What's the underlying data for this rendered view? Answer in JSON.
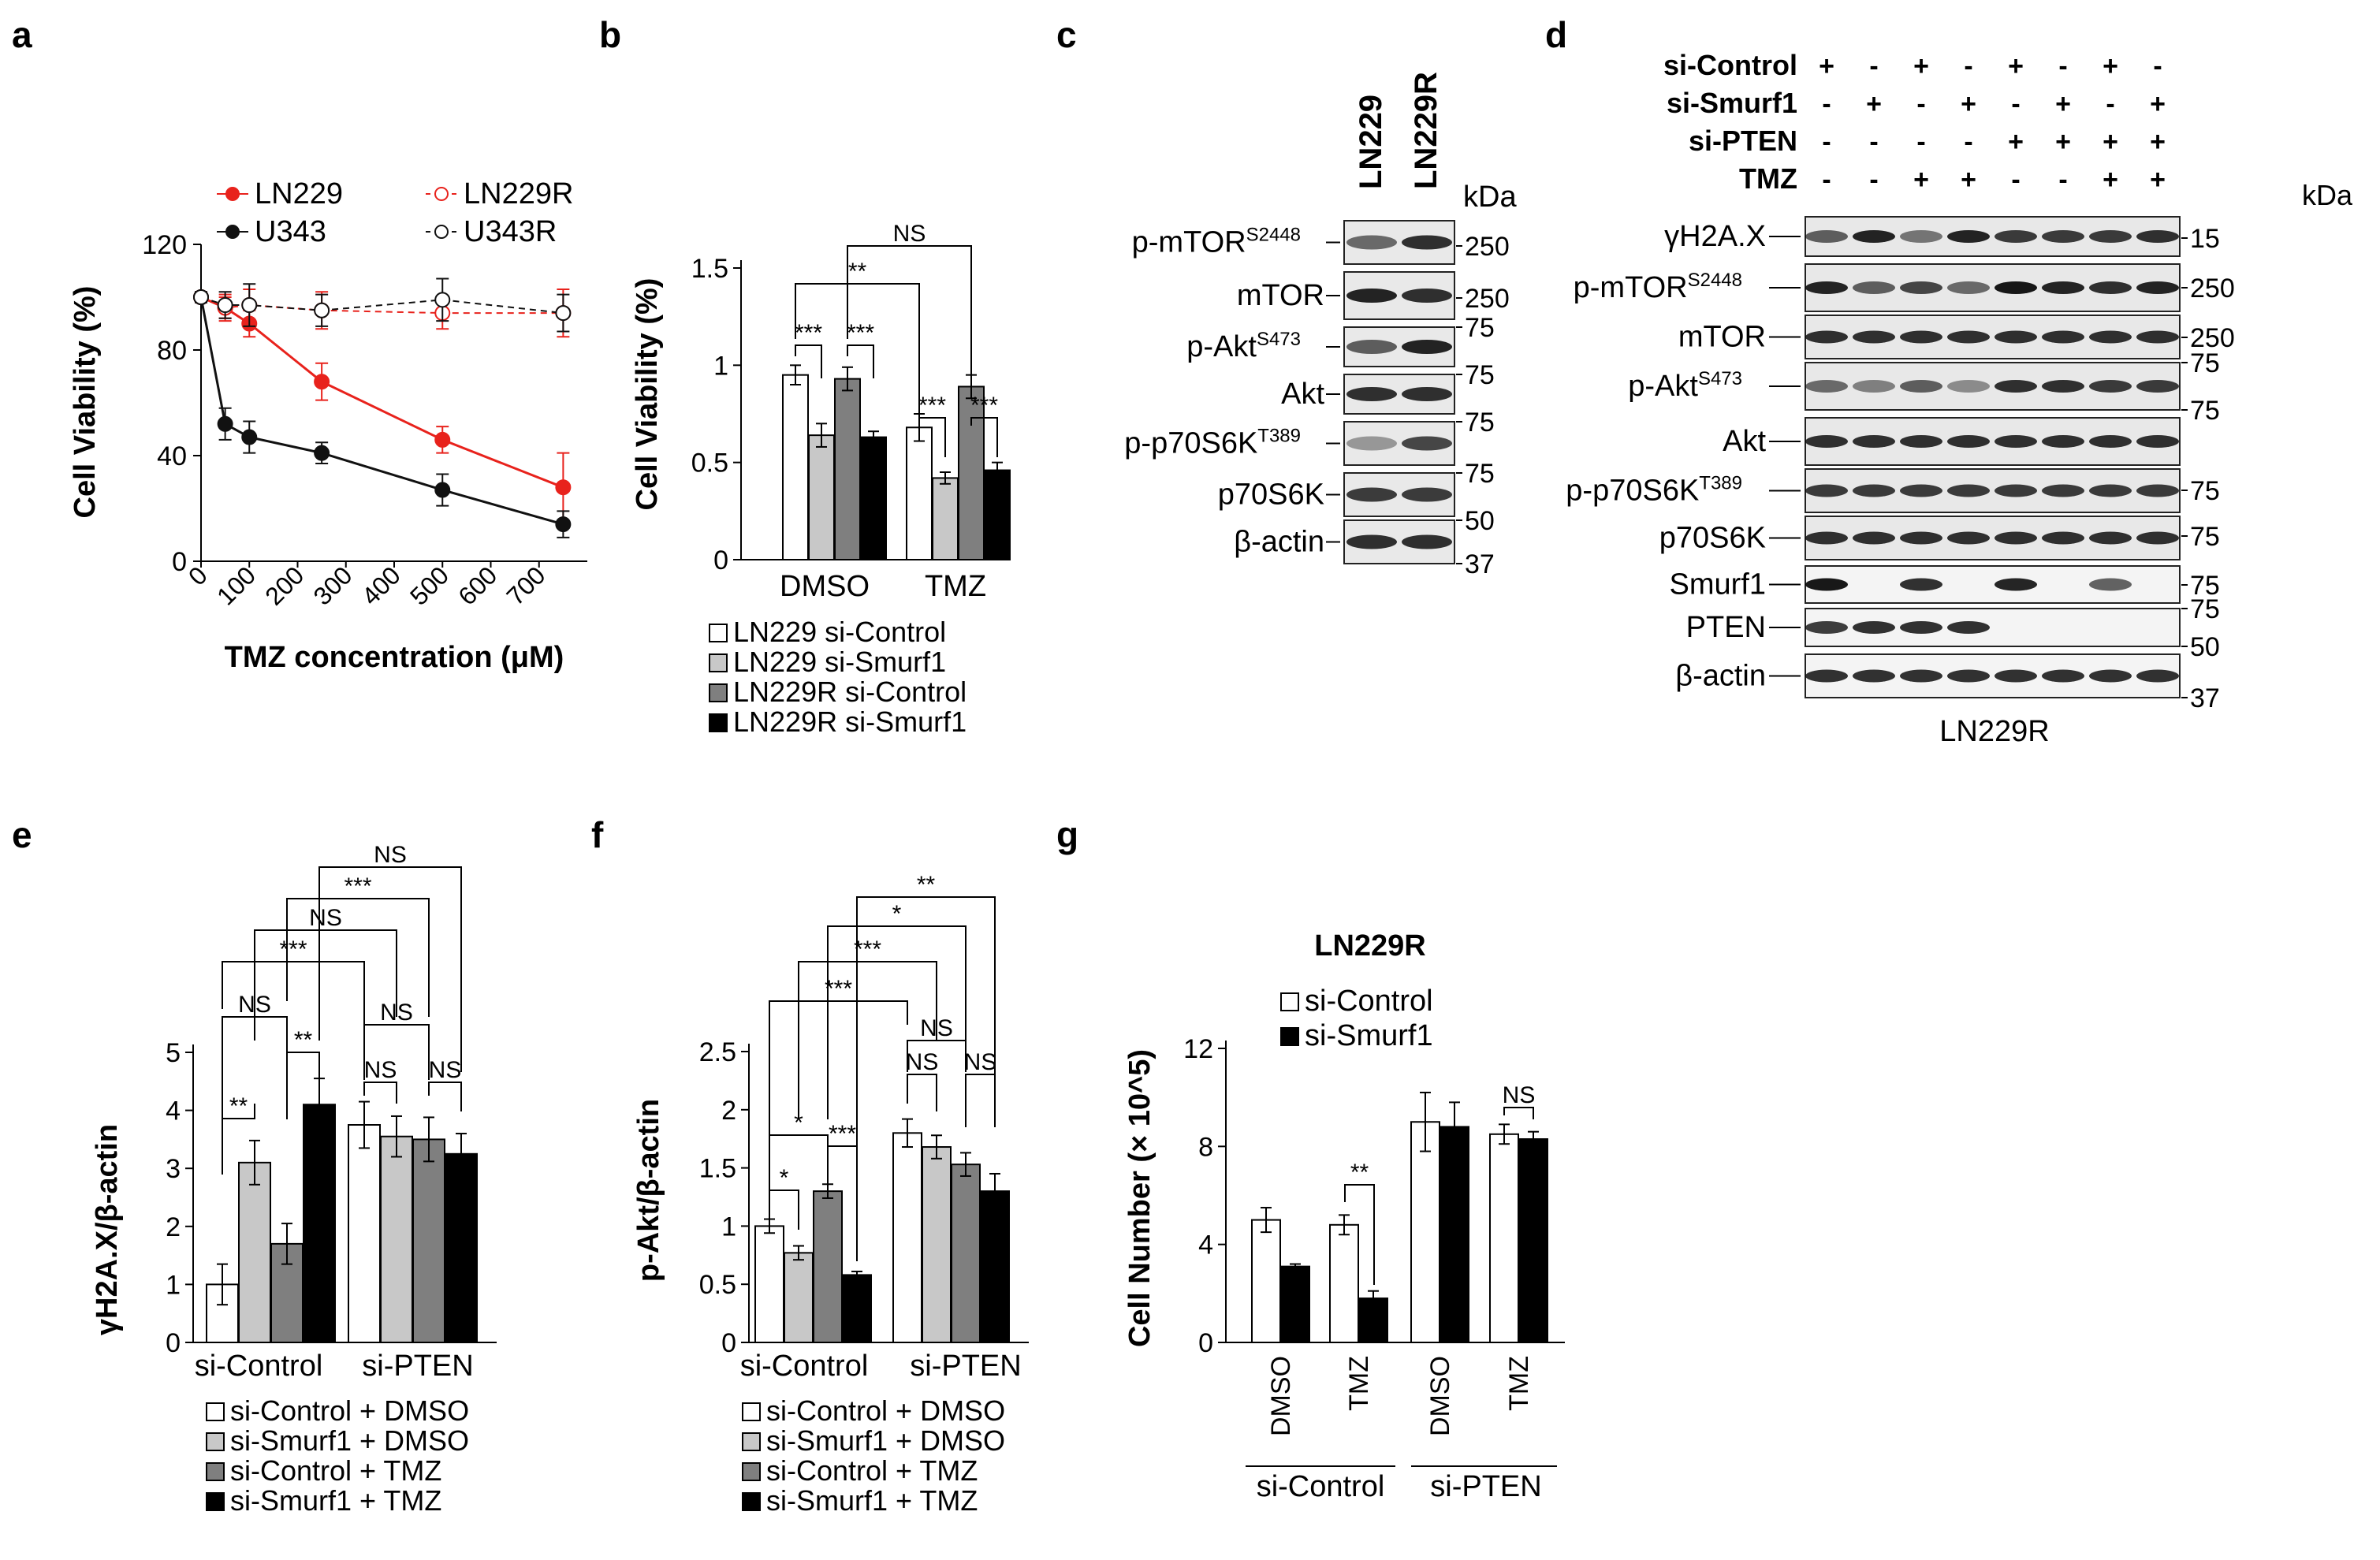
{
  "panel_letters": {
    "a": "a",
    "b": "b",
    "c": "c",
    "d": "d",
    "e": "e",
    "f": "f",
    "g": "g"
  },
  "units": {
    "kda": "kDa"
  },
  "panel_a": {
    "legend": [
      "LN229",
      "LN229R",
      "U343",
      "U343R"
    ],
    "xlabel": "TMZ concentration (μM)",
    "ylabel": "Cell Viability  (%)",
    "x_ticks": [
      "0",
      "100",
      "200",
      "300",
      "400",
      "500",
      "600",
      "700"
    ],
    "y_ticks": [
      "0",
      "40",
      "80",
      "120"
    ]
  },
  "panel_b": {
    "ylabel": "Cell Viability  (%)",
    "y_ticks": [
      "0",
      "0.5",
      "1",
      "1.5"
    ],
    "groups": [
      "DMSO",
      "TMZ"
    ],
    "legend": [
      "LN229 si-Control",
      "LN229 si-Smurf1",
      "LN229R si-Control",
      "LN229R si-Smurf1"
    ],
    "sig": [
      "***",
      "***",
      "***",
      "***",
      "**",
      "NS"
    ]
  },
  "panel_c": {
    "lanes": [
      "LN229",
      "LN229R"
    ],
    "bands": [
      "p-mTOR",
      "mTOR",
      "p-Akt",
      "Akt",
      "p-p70S6K",
      "p70S6K",
      "β-actin"
    ],
    "superscripts": [
      "S2448",
      "S473",
      "T389"
    ],
    "markers": [
      "250",
      "250",
      "75",
      "75",
      "75",
      "75",
      "50",
      "37"
    ]
  },
  "panel_d": {
    "conditions": [
      {
        "name": "si-Control",
        "signs": [
          "+",
          "-",
          "+",
          "-",
          "+",
          "-",
          "+",
          "-"
        ]
      },
      {
        "name": "si-Smurf1",
        "signs": [
          "-",
          "+",
          "-",
          "+",
          "-",
          "+",
          "-",
          "+"
        ]
      },
      {
        "name": "si-PTEN",
        "signs": [
          "-",
          "-",
          "-",
          "-",
          "+",
          "+",
          "+",
          "+"
        ]
      },
      {
        "name": "TMZ",
        "signs": [
          "-",
          "-",
          "+",
          "+",
          "-",
          "-",
          "+",
          "+"
        ]
      }
    ],
    "bands": [
      "γH2A.X",
      "p-mTOR",
      "mTOR",
      "p-Akt",
      "Akt",
      "p-p70S6K",
      "p70S6K",
      "Smurf1",
      "PTEN",
      "β-actin"
    ],
    "superscripts": [
      "S2448",
      "S473",
      "T389"
    ],
    "markers": [
      "15",
      "250",
      "250",
      "75",
      "75",
      "75",
      "75",
      "75",
      "75",
      "50",
      "37"
    ],
    "cell_line": "LN229R"
  },
  "panel_e": {
    "ylabel": "γH2A.X/β-actin",
    "y_ticks": [
      "0",
      "1",
      "2",
      "3",
      "4",
      "5"
    ],
    "groups": [
      "si-Control",
      "si-PTEN"
    ],
    "legend": [
      "si-Control + DMSO",
      "si-Smurf1 + DMSO",
      "si-Control + TMZ",
      "si-Smurf1 + TMZ"
    ],
    "sig": [
      "**",
      "**",
      "NS",
      "NS",
      "NS",
      "NS",
      "***",
      "NS",
      "***",
      "NS"
    ]
  },
  "panel_f": {
    "ylabel": "p-Akt/β-actin",
    "y_ticks": [
      "0",
      "0.5",
      "1",
      "1.5",
      "2",
      "2.5"
    ],
    "groups": [
      "si-Control",
      "si-PTEN"
    ],
    "legend": [
      "si-Control + DMSO",
      "si-Smurf1 + DMSO",
      "si-Control + TMZ",
      "si-Smurf1 + TMZ"
    ],
    "sig": [
      "*",
      "*",
      "***",
      "NS",
      "NS",
      "NS",
      "***",
      "***",
      "*",
      "**"
    ]
  },
  "panel_g": {
    "title": "LN229R",
    "ylabel": "Cell Number (× 10^5)",
    "y_ticks": [
      "0",
      "4",
      "8",
      "12"
    ],
    "legend": [
      "si-Control",
      "si-Smurf1"
    ],
    "x_labels": [
      "DMSO",
      "TMZ",
      "DMSO",
      "TMZ"
    ],
    "groups": [
      "si-Control",
      "si-PTEN"
    ],
    "sig": [
      "**",
      "NS"
    ]
  },
  "chart_data": [
    {
      "panel": "a",
      "type": "line",
      "x": [
        0,
        50,
        100,
        250,
        500,
        750
      ],
      "series": [
        {
          "name": "LN229",
          "values": [
            100,
            96,
            90,
            68,
            46,
            28
          ],
          "err": [
            2,
            4,
            5,
            7,
            5,
            13
          ],
          "color": "#e8221c",
          "dash": false,
          "filled": true
        },
        {
          "name": "LN229R",
          "values": [
            100,
            96,
            97,
            95,
            94,
            94
          ],
          "err": [
            2,
            5,
            6,
            7,
            6,
            9
          ],
          "color": "#e8221c",
          "dash": true,
          "filled": false
        },
        {
          "name": "U343",
          "values": [
            100,
            52,
            47,
            41,
            27,
            14
          ],
          "err": [
            2,
            6,
            6,
            4,
            6,
            5
          ],
          "color": "#111111",
          "dash": false,
          "filled": true
        },
        {
          "name": "U343R",
          "values": [
            100,
            97,
            97,
            95,
            99,
            94
          ],
          "err": [
            2,
            5,
            8,
            6,
            8,
            7
          ],
          "color": "#111111",
          "dash": true,
          "filled": false
        }
      ],
      "ylim": [
        0,
        120
      ]
    },
    {
      "panel": "b",
      "type": "bar",
      "categories": [
        "DMSO",
        "TMZ"
      ],
      "series": [
        {
          "name": "LN229 si-Control",
          "values": [
            0.95,
            0.68
          ],
          "err": [
            0.05,
            0.07
          ]
        },
        {
          "name": "LN229 si-Smurf1",
          "values": [
            0.64,
            0.42
          ],
          "err": [
            0.06,
            0.03
          ]
        },
        {
          "name": "LN229R si-Control",
          "values": [
            0.93,
            0.89
          ],
          "err": [
            0.06,
            0.06
          ]
        },
        {
          "name": "LN229R si-Smurf1",
          "values": [
            0.63,
            0.46
          ],
          "err": [
            0.03,
            0.04
          ]
        }
      ],
      "ylim": [
        0,
        1.5
      ]
    },
    {
      "panel": "e",
      "type": "bar",
      "categories": [
        "si-Control",
        "si-PTEN"
      ],
      "series": [
        {
          "name": "si-Control + DMSO",
          "values": [
            1.0,
            3.75
          ],
          "err": [
            0.35,
            0.4
          ]
        },
        {
          "name": "si-Smurf1 + DMSO",
          "values": [
            3.1,
            3.55
          ],
          "err": [
            0.38,
            0.35
          ]
        },
        {
          "name": "si-Control + TMZ",
          "values": [
            1.7,
            3.5
          ],
          "err": [
            0.35,
            0.38
          ]
        },
        {
          "name": "si-Smurf1 + TMZ",
          "values": [
            4.1,
            3.25
          ],
          "err": [
            0.45,
            0.35
          ]
        }
      ],
      "ylim": [
        0,
        5
      ]
    },
    {
      "panel": "f",
      "type": "bar",
      "categories": [
        "si-Control",
        "si-PTEN"
      ],
      "series": [
        {
          "name": "si-Control + DMSO",
          "values": [
            1.0,
            1.8
          ],
          "err": [
            0.06,
            0.12
          ]
        },
        {
          "name": "si-Smurf1 + DMSO",
          "values": [
            0.77,
            1.68
          ],
          "err": [
            0.06,
            0.1
          ]
        },
        {
          "name": "si-Control + TMZ",
          "values": [
            1.3,
            1.53
          ],
          "err": [
            0.06,
            0.1
          ]
        },
        {
          "name": "si-Smurf1 + TMZ",
          "values": [
            0.58,
            1.3
          ],
          "err": [
            0.03,
            0.15
          ]
        }
      ],
      "ylim": [
        0,
        2.5
      ]
    },
    {
      "panel": "g",
      "type": "bar",
      "categories": [
        "DMSO",
        "TMZ",
        "DMSO",
        "TMZ"
      ],
      "series": [
        {
          "name": "si-Control",
          "values": [
            5.0,
            4.8,
            9.0,
            8.5
          ],
          "err": [
            0.5,
            0.4,
            1.2,
            0.4
          ]
        },
        {
          "name": "si-Smurf1",
          "values": [
            3.1,
            1.8,
            8.8,
            8.3
          ],
          "err": [
            0.1,
            0.3,
            1.0,
            0.3
          ]
        }
      ],
      "ylim": [
        0,
        12
      ]
    }
  ]
}
